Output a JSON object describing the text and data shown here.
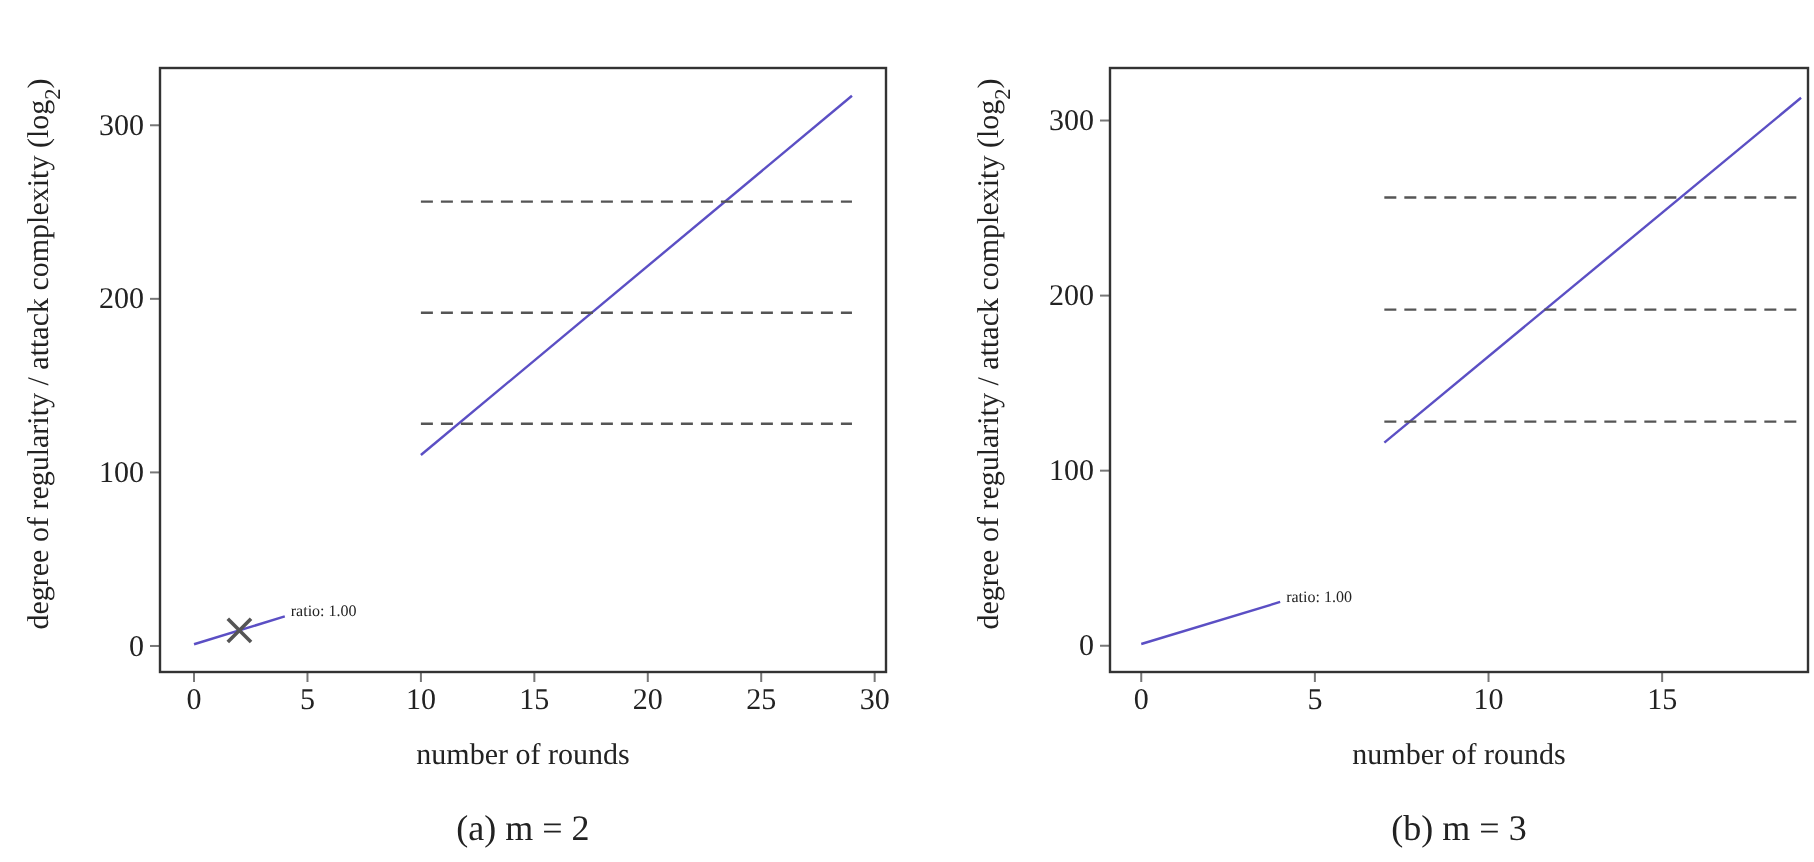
{
  "chart_data": [
    {
      "type": "line",
      "title": "(a) m = 2",
      "xlabel": "number of rounds",
      "ylabel": "degree of regularity / attack complexity (log$_{2}$)",
      "xlim": [
        -1.5,
        30.5
      ],
      "ylim": [
        -15,
        333
      ],
      "xticks": [
        0,
        5,
        10,
        15,
        20,
        25,
        30
      ],
      "yticks": [
        0,
        100,
        200,
        300
      ],
      "series": [
        {
          "x": [
            0,
            4
          ],
          "values": [
            1,
            17
          ],
          "color": "#5b4fc4"
        },
        {
          "x": [
            10,
            29
          ],
          "values": [
            110,
            317
          ],
          "color": "#5b4fc4"
        },
        {
          "x": [
            10,
            29
          ],
          "values": [
            128,
            128
          ],
          "color": "#555555",
          "line_style": "dashed"
        },
        {
          "x": [
            10,
            29
          ],
          "values": [
            192,
            192
          ],
          "color": "#555555",
          "line_style": "dashed"
        },
        {
          "x": [
            10,
            29
          ],
          "values": [
            256,
            256
          ],
          "color": "#555555",
          "line_style": "dashed"
        },
        {
          "type": "scatter",
          "x": [
            2
          ],
          "values": [
            9
          ],
          "color": "#555555",
          "marker": "cross"
        }
      ],
      "annotations": [
        {
          "text": "ratio: 1.00",
          "x": 4,
          "y": 17
        }
      ]
    },
    {
      "type": "line",
      "title": "(b) m = 3",
      "xlabel": "number of rounds",
      "ylabel": "degree of regularity / attack complexity (log$_{2}$)",
      "xlim": [
        -0.9,
        19.2
      ],
      "ylim": [
        -15,
        330
      ],
      "xticks": [
        0,
        5,
        10,
        15
      ],
      "yticks": [
        0,
        100,
        200,
        300
      ],
      "series": [
        {
          "x": [
            0,
            4
          ],
          "values": [
            1,
            25
          ],
          "color": "#5b4fc4"
        },
        {
          "x": [
            7,
            19
          ],
          "values": [
            116,
            313
          ],
          "color": "#5b4fc4"
        },
        {
          "x": [
            7,
            19
          ],
          "values": [
            128,
            128
          ],
          "color": "#555555",
          "line_style": "dashed"
        },
        {
          "x": [
            7,
            19
          ],
          "values": [
            192,
            192
          ],
          "color": "#555555",
          "line_style": "dashed"
        },
        {
          "x": [
            7,
            19
          ],
          "values": [
            256,
            256
          ],
          "color": "#555555",
          "line_style": "dashed"
        }
      ],
      "annotations": [
        {
          "text": "ratio: 1.00",
          "x": 4,
          "y": 25
        }
      ]
    }
  ]
}
